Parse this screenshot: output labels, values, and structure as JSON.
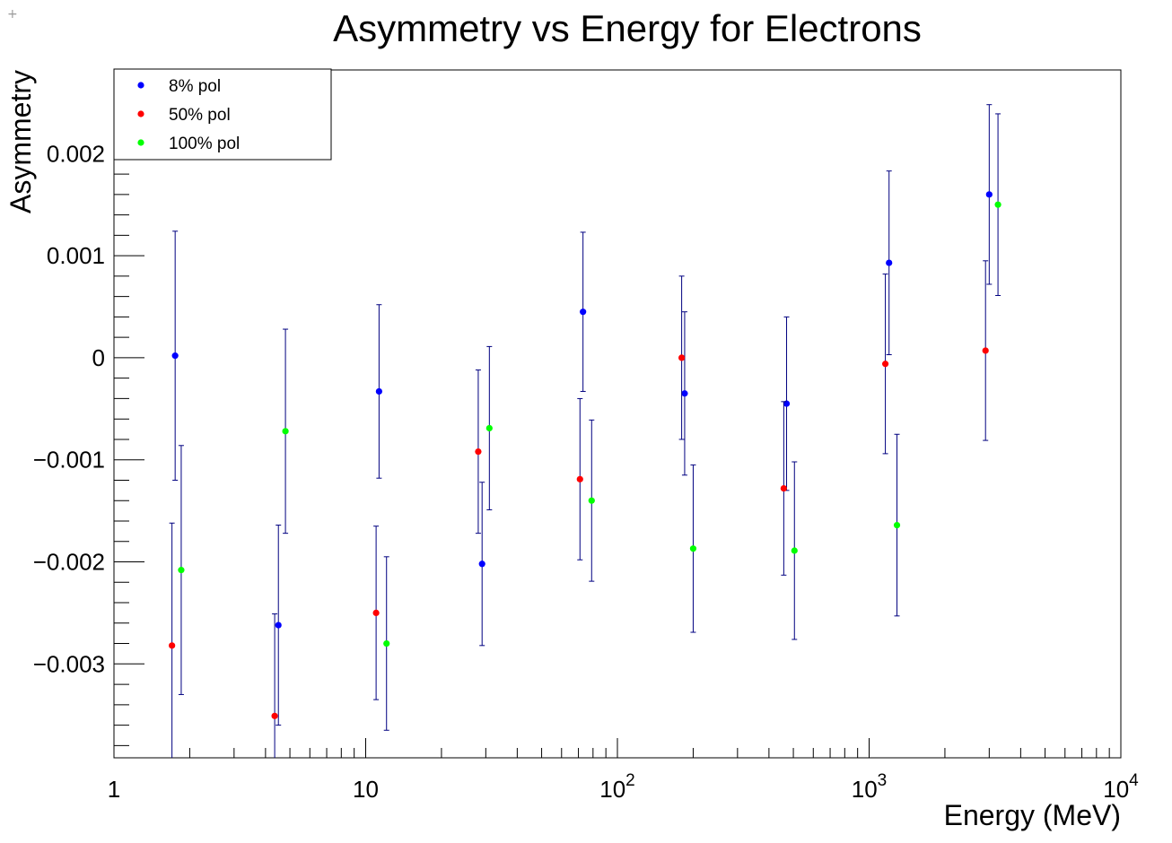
{
  "chart_data": {
    "type": "scatter",
    "title": "Asymmetry vs Energy for Electrons",
    "xlabel": "Energy (MeV)",
    "ylabel": "Asymmetry",
    "x_scale": "log",
    "xlim": [
      1,
      10000
    ],
    "ylim": [
      -0.00392,
      0.00282
    ],
    "x_tick_labels": [
      {
        "value": 1,
        "base": "1",
        "exp": ""
      },
      {
        "value": 10,
        "base": "10",
        "exp": ""
      },
      {
        "value": 100,
        "base": "10",
        "exp": "2"
      },
      {
        "value": 1000,
        "base": "10",
        "exp": "3"
      },
      {
        "value": 10000,
        "base": "10",
        "exp": "4"
      }
    ],
    "y_tick_labels": [
      {
        "value": 0.002,
        "label": "0.002"
      },
      {
        "value": 0.001,
        "label": "0.001"
      },
      {
        "value": 0,
        "label": "0"
      },
      {
        "value": -0.001,
        "label": "−0.001"
      },
      {
        "value": -0.002,
        "label": "−0.002"
      },
      {
        "value": -0.003,
        "label": "−0.003"
      }
    ],
    "grid": false,
    "legend_position": "top-left",
    "error_bar_color": "#000080",
    "series": [
      {
        "name": "8% pol",
        "color": "#0000ff",
        "points": [
          {
            "x": 1.75,
            "y": 2e-05,
            "err": 0.00122
          },
          {
            "x": 4.5,
            "y": -0.00262,
            "err": 0.00098
          },
          {
            "x": 11.3,
            "y": -0.00033,
            "err": 0.00085
          },
          {
            "x": 29,
            "y": -0.00202,
            "err": 0.0008
          },
          {
            "x": 73,
            "y": 0.00045,
            "err": 0.00078
          },
          {
            "x": 185,
            "y": -0.00035,
            "err": 0.0008
          },
          {
            "x": 470,
            "y": -0.00045,
            "err": 0.00085
          },
          {
            "x": 1200,
            "y": 0.00093,
            "err": 0.0009
          },
          {
            "x": 3000,
            "y": 0.0016,
            "err": 0.00088
          }
        ]
      },
      {
        "name": "50% pol",
        "color": "#ff0000",
        "points": [
          {
            "x": 1.7,
            "y": -0.00282,
            "err": 0.0012
          },
          {
            "x": 4.35,
            "y": -0.00351,
            "err": 0.001
          },
          {
            "x": 11,
            "y": -0.0025,
            "err": 0.00085
          },
          {
            "x": 28,
            "y": -0.00092,
            "err": 0.0008
          },
          {
            "x": 71,
            "y": -0.00119,
            "err": 0.00079
          },
          {
            "x": 180,
            "y": 0.0,
            "err": 0.0008
          },
          {
            "x": 458,
            "y": -0.00128,
            "err": 0.00085
          },
          {
            "x": 1160,
            "y": -6e-05,
            "err": 0.00088
          },
          {
            "x": 2900,
            "y": 7e-05,
            "err": 0.00088
          }
        ]
      },
      {
        "name": "100% pol",
        "color": "#00ff00",
        "points": [
          {
            "x": 1.85,
            "y": -0.00208,
            "err": 0.00122
          },
          {
            "x": 4.8,
            "y": -0.00072,
            "err": 0.001
          },
          {
            "x": 12.1,
            "y": -0.0028,
            "err": 0.00085
          },
          {
            "x": 31,
            "y": -0.00069,
            "err": 0.0008
          },
          {
            "x": 79,
            "y": -0.0014,
            "err": 0.00079
          },
          {
            "x": 200,
            "y": -0.00187,
            "err": 0.00082
          },
          {
            "x": 505,
            "y": -0.00189,
            "err": 0.00087
          },
          {
            "x": 1290,
            "y": -0.00164,
            "err": 0.00089
          },
          {
            "x": 3250,
            "y": 0.0015,
            "err": 0.00089
          }
        ]
      }
    ]
  },
  "window": {
    "corner_glyph": "+"
  }
}
